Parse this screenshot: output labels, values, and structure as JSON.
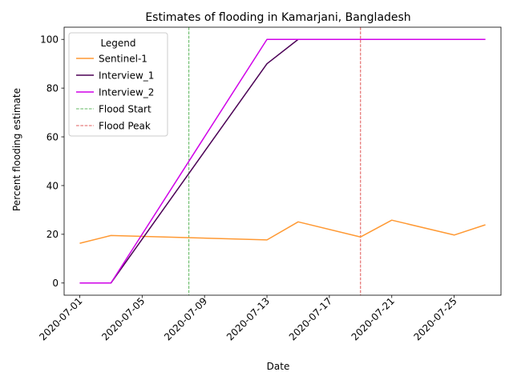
{
  "chart_data": {
    "type": "line",
    "title": "Estimates of flooding in Kamarjani, Bangladesh",
    "xlabel": "Date",
    "ylabel": "Percent flooding estimate",
    "x_ticks": [
      "2020-07-01",
      "2020-07-05",
      "2020-07-09",
      "2020-07-13",
      "2020-07-17",
      "2020-07-21",
      "2020-07-25"
    ],
    "y_ticks": [
      0,
      20,
      40,
      60,
      80,
      100
    ],
    "xlim": [
      "2020-06-30",
      "2020-07-28"
    ],
    "ylim": [
      -5,
      105
    ],
    "legend": {
      "title": "Legend",
      "placement": "top-left"
    },
    "series": [
      {
        "name": "Sentinel-1",
        "color": "#ff9933",
        "style": "solid",
        "x": [
          "2020-07-01",
          "2020-07-03",
          "2020-07-13",
          "2020-07-15",
          "2020-07-19",
          "2020-07-21",
          "2020-07-25",
          "2020-07-27"
        ],
        "values": [
          16.3,
          19.5,
          17.7,
          25.1,
          18.9,
          25.8,
          19.7,
          23.9
        ]
      },
      {
        "name": "Interview_1",
        "color": "#4b0055",
        "style": "solid",
        "x": [
          "2020-07-01",
          "2020-07-03",
          "2020-07-13",
          "2020-07-15",
          "2020-07-27"
        ],
        "values": [
          0,
          0,
          90,
          100,
          100
        ]
      },
      {
        "name": "Interview_2",
        "color": "#d000e8",
        "style": "solid",
        "x": [
          "2020-07-01",
          "2020-07-03",
          "2020-07-13",
          "2020-07-27"
        ],
        "values": [
          0,
          0,
          100,
          100
        ]
      }
    ],
    "vlines": [
      {
        "name": "Flood Start",
        "x": "2020-07-08",
        "color": "#2ca02c",
        "style": "dashed"
      },
      {
        "name": "Flood Peak",
        "x": "2020-07-19",
        "color": "#d62728",
        "style": "dashed"
      }
    ]
  }
}
